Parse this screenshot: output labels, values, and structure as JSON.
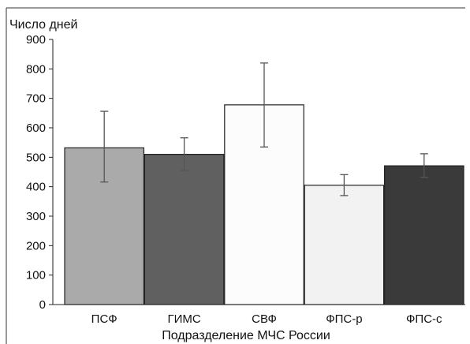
{
  "chart_data": {
    "type": "bar",
    "title": "",
    "ylabel": "Число дней",
    "xlabel": "Подразделение МЧС России",
    "categories": [
      "ПСФ",
      "ГИМС",
      "СВФ",
      "ФПС-р",
      "ФПС-с"
    ],
    "values": [
      532,
      510,
      678,
      405,
      471
    ],
    "error_low": [
      416,
      455,
      535,
      370,
      432
    ],
    "error_high": [
      656,
      566,
      820,
      441,
      512
    ],
    "bar_colors": [
      "#aaaaaa",
      "#606060",
      "#fcfcfc",
      "#f2f2f2",
      "#3a3a3a"
    ],
    "ylim": [
      0,
      900
    ],
    "yticks": [
      0,
      100,
      200,
      300,
      400,
      500,
      600,
      700,
      800,
      900
    ],
    "grid": false,
    "legend": "none"
  }
}
